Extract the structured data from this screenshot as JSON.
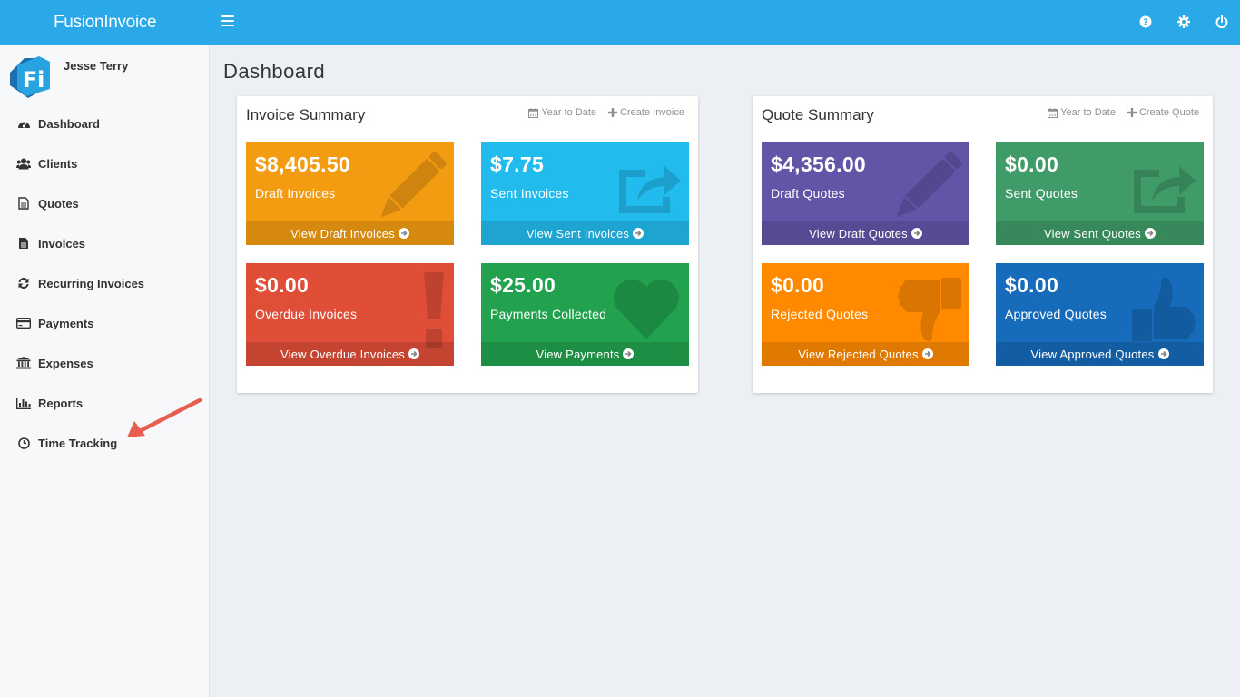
{
  "app": {
    "brand": "FusionInvoice"
  },
  "user": {
    "name": "Jesse Terry"
  },
  "sidebar": {
    "items": [
      {
        "label": "Dashboard",
        "icon": "dashboard-icon"
      },
      {
        "label": "Clients",
        "icon": "users-icon"
      },
      {
        "label": "Quotes",
        "icon": "file-outline-icon"
      },
      {
        "label": "Invoices",
        "icon": "file-icon"
      },
      {
        "label": "Recurring Invoices",
        "icon": "refresh-icon"
      },
      {
        "label": "Payments",
        "icon": "credit-card-icon"
      },
      {
        "label": "Expenses",
        "icon": "bank-icon"
      },
      {
        "label": "Reports",
        "icon": "bar-chart-icon"
      },
      {
        "label": "Time Tracking",
        "icon": "clock-icon"
      }
    ]
  },
  "main": {
    "title": "Dashboard"
  },
  "invoice_summary": {
    "title": "Invoice Summary",
    "period_link": "Year to Date",
    "create_link": "Create Invoice",
    "tiles": [
      {
        "amount": "$8,405.50",
        "label": "Draft Invoices",
        "footer": "View Draft Invoices",
        "color": "#f39c12"
      },
      {
        "amount": "$7.75",
        "label": "Sent Invoices",
        "footer": "View Sent Invoices",
        "color": "#22bbee"
      },
      {
        "amount": "$0.00",
        "label": "Overdue Invoices",
        "footer": "View Overdue Invoices",
        "color": "#e04e38"
      },
      {
        "amount": "$25.00",
        "label": "Payments Collected",
        "footer": "View Payments",
        "color": "#22a24e"
      }
    ]
  },
  "quote_summary": {
    "title": "Quote Summary",
    "period_link": "Year to Date",
    "create_link": "Create Quote",
    "tiles": [
      {
        "amount": "$4,356.00",
        "label": "Draft Quotes",
        "footer": "View Draft Quotes",
        "color": "#6155a8"
      },
      {
        "amount": "$0.00",
        "label": "Sent Quotes",
        "footer": "View Sent Quotes",
        "color": "#3f9b67"
      },
      {
        "amount": "$0.00",
        "label": "Rejected Quotes",
        "footer": "View Rejected Quotes",
        "color": "#ff8a00"
      },
      {
        "amount": "$0.00",
        "label": "Approved Quotes",
        "footer": "View Approved Quotes",
        "color": "#166cba"
      }
    ]
  }
}
